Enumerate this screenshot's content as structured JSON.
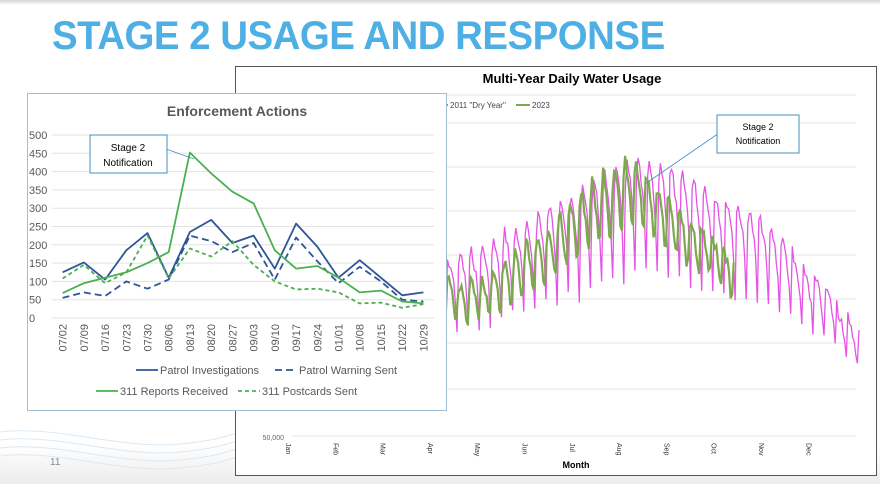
{
  "slide": {
    "title": "STAGE 2 USAGE AND RESPONSE",
    "page_number": "11",
    "title_color": "#4dafe3"
  },
  "chart_data": [
    {
      "type": "line",
      "title": "Enforcement Actions",
      "categories": [
        "07/02",
        "07/09",
        "07/16",
        "07/23",
        "07/30",
        "08/06",
        "08/13",
        "08/20",
        "08/27",
        "09/03",
        "09/10",
        "09/17",
        "09/24",
        "01/01",
        "10/08",
        "10/15",
        "10/22",
        "10/29"
      ],
      "ylim": [
        0,
        500
      ],
      "yticks": [
        "0",
        "50",
        "100",
        "150",
        "200",
        "250",
        "300",
        "350",
        "400",
        "450",
        "500"
      ],
      "grid": true,
      "legend_position": "bottom",
      "series": [
        {
          "name": "Patrol Investigations",
          "color": "#2f5597",
          "style": "solid",
          "values": [
            125,
            152,
            105,
            185,
            232,
            110,
            235,
            268,
            205,
            225,
            135,
            258,
            195,
            110,
            158,
            110,
            62,
            70
          ]
        },
        {
          "name": "Patrol Warning Sent",
          "color": "#2f5597",
          "style": "dashed",
          "values": [
            55,
            70,
            60,
            100,
            80,
            105,
            225,
            210,
            180,
            205,
            105,
            220,
            155,
            95,
            140,
            100,
            50,
            45
          ]
        },
        {
          "name": "311 Reports Received",
          "color": "#4cb050",
          "style": "solid",
          "values": [
            68,
            95,
            110,
            125,
            150,
            180,
            452,
            395,
            345,
            313,
            185,
            135,
            142,
            110,
            70,
            75,
            45,
            40
          ]
        },
        {
          "name": "311 Postcards Sent",
          "color": "#4cb050",
          "style": "dashed",
          "values": [
            108,
            145,
            95,
            125,
            225,
            108,
            190,
            168,
            210,
            145,
            100,
            78,
            80,
            70,
            40,
            42,
            28,
            38
          ]
        }
      ],
      "annotation": {
        "text_line1": "Stage 2",
        "text_line2": "Notification",
        "points_to": "08/13"
      }
    },
    {
      "type": "line",
      "title": "Multi-Year Daily Water Usage",
      "xlabel": "Month",
      "categories": [
        "Jan",
        "Feb",
        "Mar",
        "Apr",
        "May",
        "Jun",
        "Jul",
        "Aug",
        "Sep",
        "Oct",
        "Nov",
        "Dec"
      ],
      "visible_ytick_label": "50,000",
      "grid": true,
      "legend_position": "top",
      "series": [
        {
          "name": "2011 \"Dry Year\"",
          "color": "#e653e6",
          "description": "Daily usage from Apr through Dec; rises from Apr to peak in Aug, declines through Dec with strong weekly oscillation",
          "weekly_peaks_relative": [
            0.62,
            0.6,
            0.63,
            0.64,
            0.66,
            0.68,
            0.72,
            0.73,
            0.74,
            0.8,
            0.82,
            0.86,
            0.84,
            0.9,
            0.93,
            0.95,
            0.96,
            0.99,
            1.0,
            0.98,
            0.99,
            0.96,
            0.94,
            0.92,
            0.9,
            0.86,
            0.84,
            0.82,
            0.8,
            0.76,
            0.72,
            0.68,
            0.6,
            0.56,
            0.52,
            0.48,
            0.4,
            0.34
          ]
        },
        {
          "name": "2023",
          "color": "#7ea84e",
          "description": "Daily usage from Apr through mid-Oct; rises to Aug peak then declines",
          "weekly_peaks_relative": [
            0.55,
            0.52,
            0.5,
            0.52,
            0.54,
            0.56,
            0.6,
            0.63,
            0.68,
            0.7,
            0.74,
            0.8,
            0.85,
            0.88,
            0.92,
            0.95,
            0.97,
            1.0,
            0.98,
            0.93,
            0.88,
            0.84,
            0.8,
            0.76,
            0.74,
            0.7,
            0.64
          ]
        }
      ],
      "annotation": {
        "text_line1": "Stage 2",
        "text_line2": "Notification",
        "points_to": "Aug"
      }
    }
  ]
}
